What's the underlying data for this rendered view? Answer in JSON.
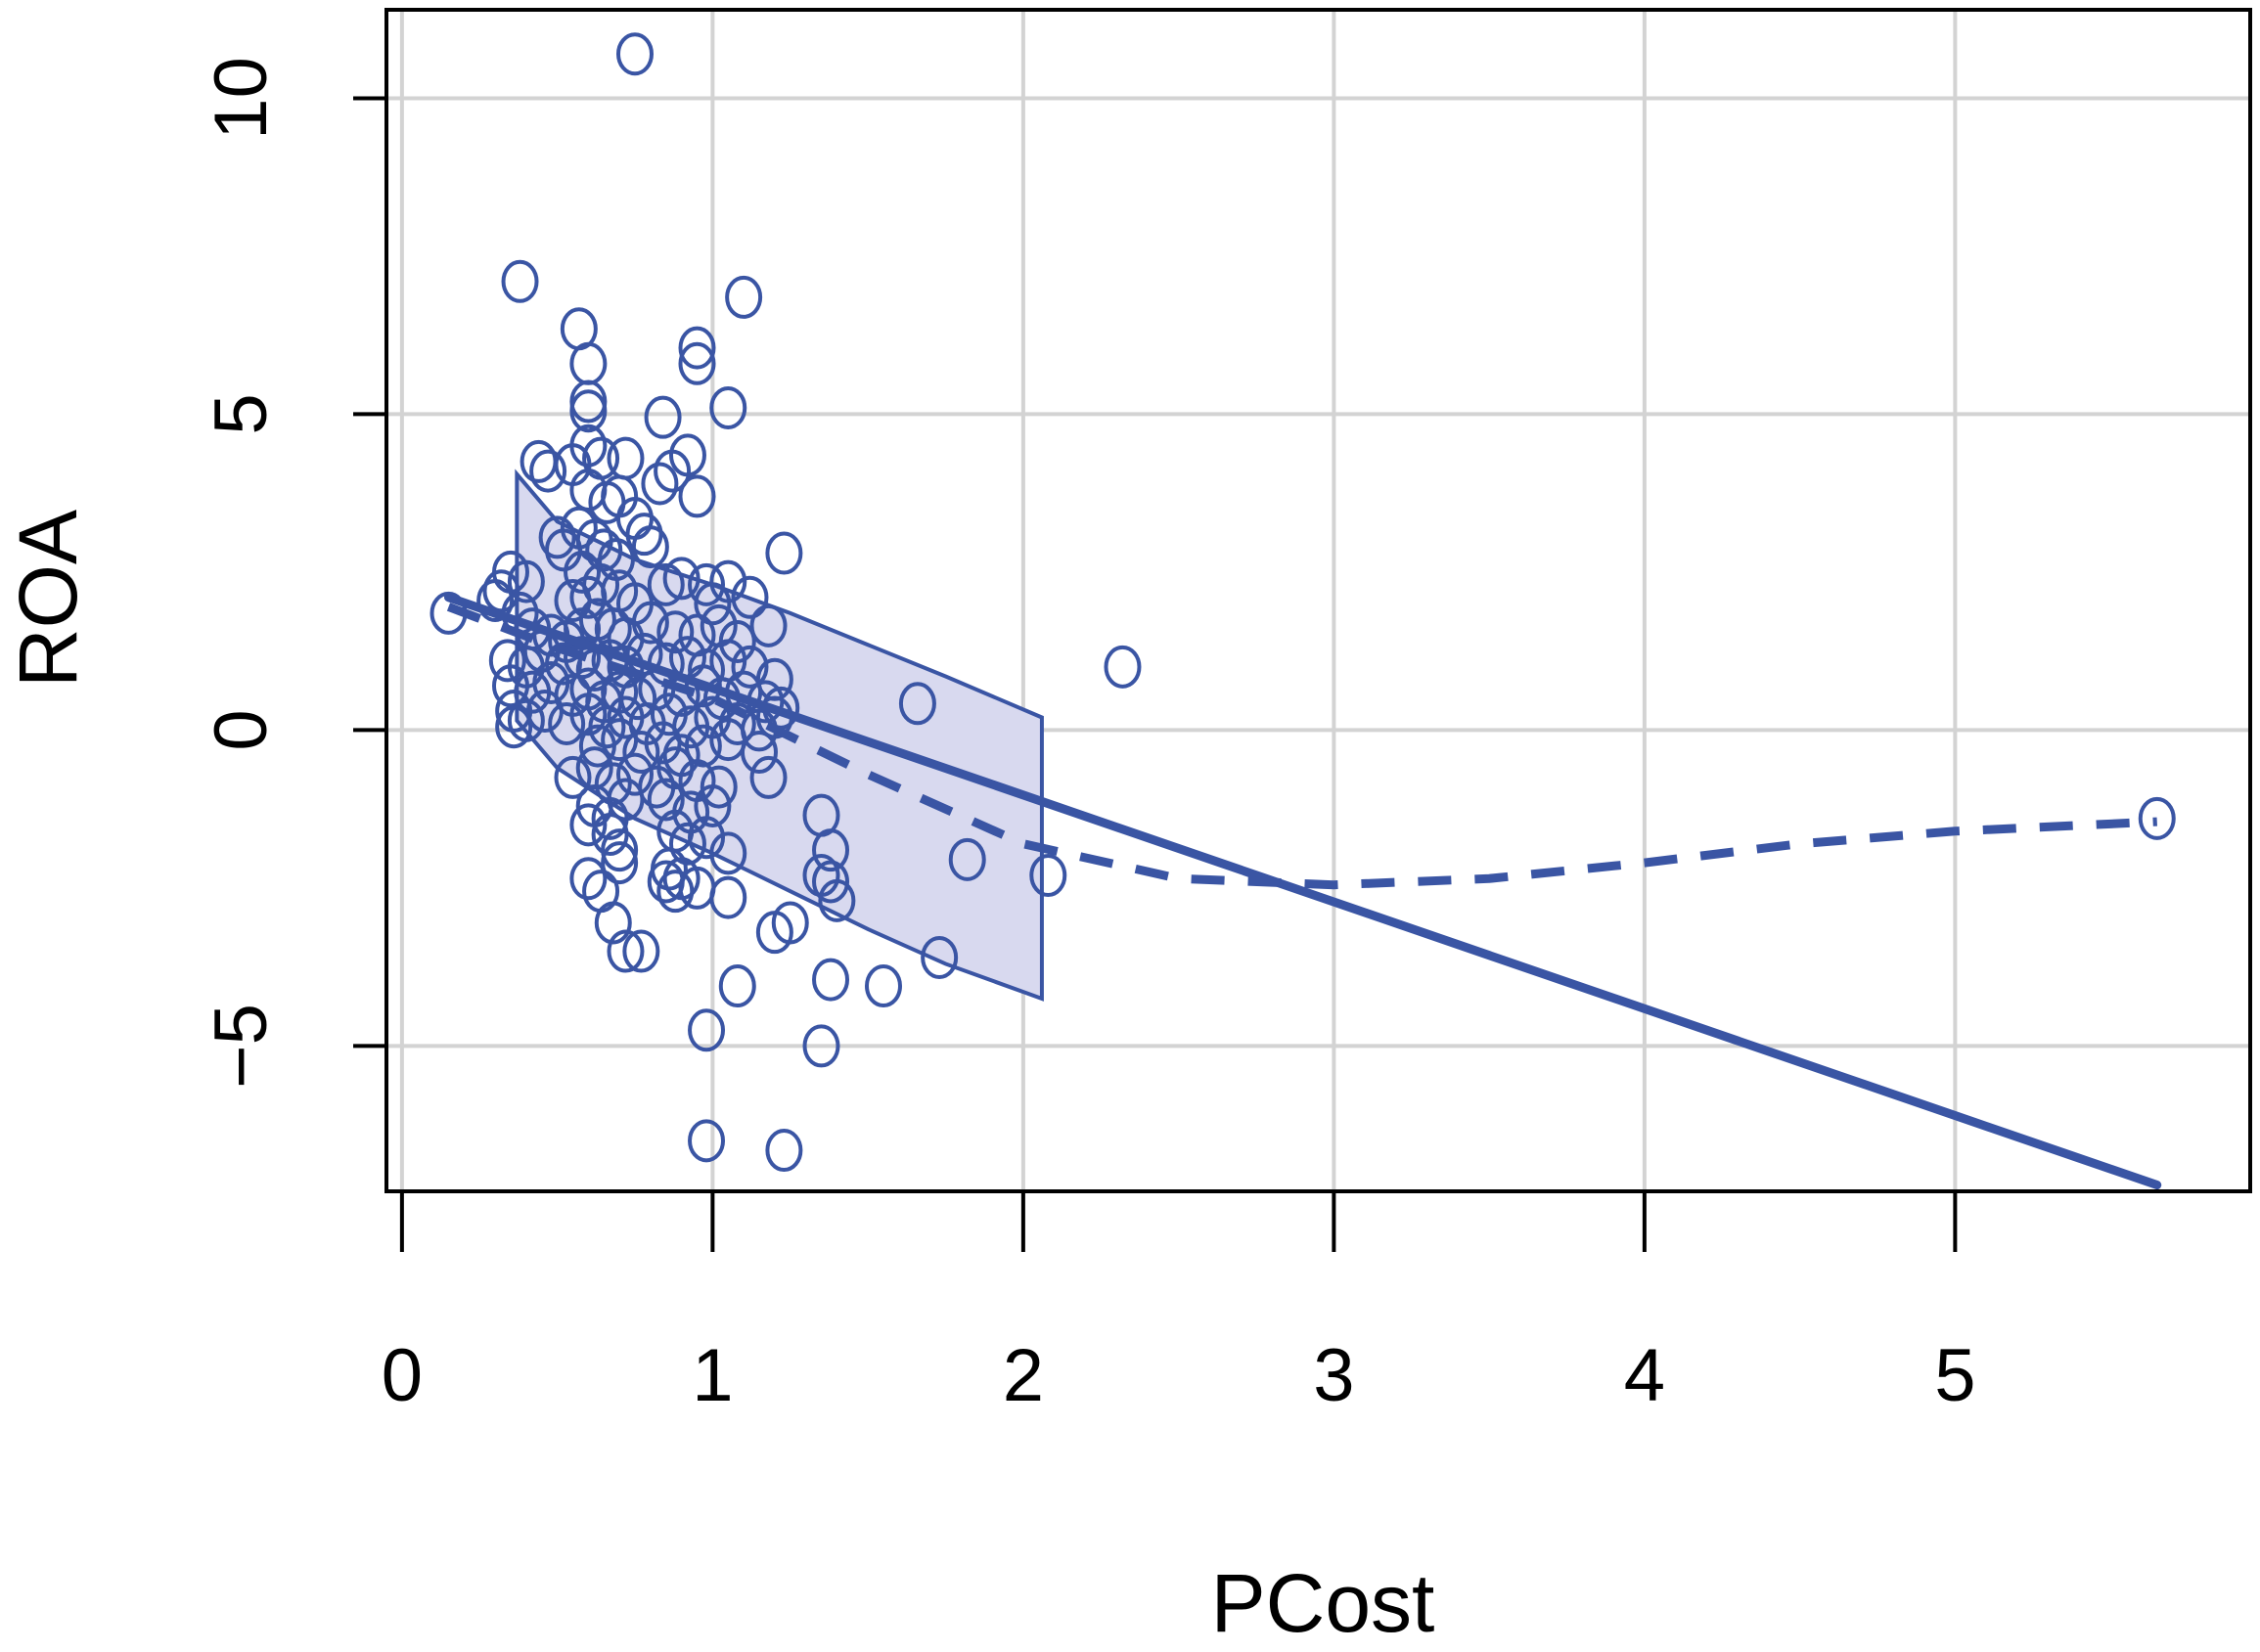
{
  "colors": {
    "series": "#3a55a4",
    "band_fill": "#d8d9ef",
    "grid": "#d3d3d3",
    "axis": "#000000"
  },
  "chart_data": {
    "type": "scatter",
    "title": "",
    "xlabel": "PCost",
    "ylabel": "ROA",
    "xlim": [
      -0.05,
      5.95
    ],
    "ylim": [
      -7.3,
      11.4
    ],
    "xticks": [
      0,
      1,
      2,
      3,
      4,
      5
    ],
    "yticks": [
      -5,
      0,
      5,
      10
    ],
    "xtick_labels": [
      "0",
      "1",
      "2",
      "3",
      "4",
      "5"
    ],
    "ytick_labels": [
      "−5",
      "0",
      "5",
      "10"
    ],
    "grid": true,
    "legend": "none",
    "points": [
      [
        0.15,
        1.85
      ],
      [
        0.75,
        10.7
      ],
      [
        0.38,
        7.1
      ],
      [
        1.1,
        6.85
      ],
      [
        0.57,
        6.35
      ],
      [
        0.95,
        6.05
      ],
      [
        0.95,
        5.8
      ],
      [
        0.6,
        5.8
      ],
      [
        0.6,
        5.2
      ],
      [
        0.6,
        5.05
      ],
      [
        1.05,
        5.1
      ],
      [
        0.84,
        4.95
      ],
      [
        0.6,
        4.5
      ],
      [
        0.64,
        4.3
      ],
      [
        0.44,
        4.25
      ],
      [
        0.47,
        4.1
      ],
      [
        0.55,
        4.2
      ],
      [
        0.72,
        4.3
      ],
      [
        0.92,
        4.35
      ],
      [
        0.87,
        4.1
      ],
      [
        0.83,
        3.9
      ],
      [
        0.95,
        3.7
      ],
      [
        0.6,
        3.8
      ],
      [
        0.66,
        3.6
      ],
      [
        0.7,
        3.7
      ],
      [
        0.75,
        3.35
      ],
      [
        0.78,
        3.1
      ],
      [
        0.8,
        2.9
      ],
      [
        0.5,
        3.05
      ],
      [
        0.52,
        2.85
      ],
      [
        0.57,
        3.2
      ],
      [
        0.62,
        3.0
      ],
      [
        0.65,
        2.85
      ],
      [
        0.69,
        2.7
      ],
      [
        0.35,
        2.5
      ],
      [
        0.32,
        2.2
      ],
      [
        0.4,
        2.35
      ],
      [
        0.58,
        2.5
      ],
      [
        0.64,
        2.3
      ],
      [
        0.6,
        2.1
      ],
      [
        0.55,
        2.05
      ],
      [
        0.7,
        2.2
      ],
      [
        0.75,
        2.0
      ],
      [
        0.85,
        2.3
      ],
      [
        0.9,
        2.4
      ],
      [
        0.98,
        2.3
      ],
      [
        1.05,
        2.35
      ],
      [
        1.12,
        2.1
      ],
      [
        1.0,
        2.0
      ],
      [
        0.3,
        2.05
      ],
      [
        0.38,
        1.85
      ],
      [
        0.42,
        1.6
      ],
      [
        0.48,
        1.5
      ],
      [
        0.53,
        1.4
      ],
      [
        0.58,
        1.6
      ],
      [
        0.63,
        1.75
      ],
      [
        0.68,
        1.6
      ],
      [
        0.72,
        1.45
      ],
      [
        0.8,
        1.7
      ],
      [
        0.88,
        1.55
      ],
      [
        0.95,
        1.5
      ],
      [
        1.02,
        1.65
      ],
      [
        1.08,
        1.4
      ],
      [
        1.18,
        1.65
      ],
      [
        0.34,
        1.1
      ],
      [
        0.4,
        1.0
      ],
      [
        0.45,
        1.25
      ],
      [
        0.52,
        1.05
      ],
      [
        0.58,
        1.15
      ],
      [
        0.62,
        0.95
      ],
      [
        0.67,
        1.1
      ],
      [
        0.72,
        1.0
      ],
      [
        0.78,
        1.2
      ],
      [
        0.85,
        1.05
      ],
      [
        0.92,
        1.15
      ],
      [
        0.98,
        0.95
      ],
      [
        1.05,
        1.1
      ],
      [
        1.12,
        1.0
      ],
      [
        1.2,
        0.8
      ],
      [
        0.35,
        0.7
      ],
      [
        0.42,
        0.6
      ],
      [
        0.48,
        0.75
      ],
      [
        0.55,
        0.55
      ],
      [
        0.6,
        0.65
      ],
      [
        0.65,
        0.45
      ],
      [
        0.7,
        0.6
      ],
      [
        0.76,
        0.5
      ],
      [
        0.82,
        0.65
      ],
      [
        0.9,
        0.55
      ],
      [
        0.97,
        0.7
      ],
      [
        1.03,
        0.5
      ],
      [
        1.1,
        0.6
      ],
      [
        1.17,
        0.45
      ],
      [
        1.22,
        0.35
      ],
      [
        1.66,
        0.42
      ],
      [
        2.32,
        1.0
      ],
      [
        1.23,
        2.8
      ],
      [
        0.36,
        0.3
      ],
      [
        0.4,
        0.15
      ],
      [
        0.46,
        0.3
      ],
      [
        0.53,
        0.1
      ],
      [
        0.6,
        0.25
      ],
      [
        0.66,
        0.05
      ],
      [
        0.72,
        0.2
      ],
      [
        0.79,
        0.1
      ],
      [
        0.86,
        0.25
      ],
      [
        0.93,
        0.05
      ],
      [
        1.0,
        0.2
      ],
      [
        1.08,
        0.1
      ],
      [
        1.15,
        0.0
      ],
      [
        1.2,
        0.2
      ],
      [
        0.36,
        0.05
      ],
      [
        0.63,
        -0.25
      ],
      [
        0.7,
        -0.15
      ],
      [
        0.77,
        -0.35
      ],
      [
        0.84,
        -0.2
      ],
      [
        0.9,
        -0.4
      ],
      [
        0.97,
        -0.25
      ],
      [
        1.05,
        -0.15
      ],
      [
        1.15,
        -0.35
      ],
      [
        0.55,
        -0.75
      ],
      [
        0.62,
        -0.6
      ],
      [
        0.68,
        -0.85
      ],
      [
        0.75,
        -0.7
      ],
      [
        0.82,
        -0.9
      ],
      [
        0.88,
        -0.6
      ],
      [
        0.95,
        -0.8
      ],
      [
        1.02,
        -0.9
      ],
      [
        1.18,
        -0.75
      ],
      [
        0.62,
        -1.2
      ],
      [
        0.67,
        -1.4
      ],
      [
        0.72,
        -1.1
      ],
      [
        0.85,
        -1.1
      ],
      [
        0.93,
        -1.3
      ],
      [
        1.0,
        -1.2
      ],
      [
        0.6,
        -1.5
      ],
      [
        0.67,
        -1.65
      ],
      [
        0.7,
        -1.9
      ],
      [
        0.88,
        -1.6
      ],
      [
        0.92,
        -1.8
      ],
      [
        0.98,
        -1.7
      ],
      [
        1.05,
        -1.95
      ],
      [
        1.35,
        -1.35
      ],
      [
        1.38,
        -1.9
      ],
      [
        0.7,
        -2.1
      ],
      [
        0.86,
        -2.2
      ],
      [
        0.9,
        -2.35
      ],
      [
        0.95,
        -2.5
      ],
      [
        1.35,
        -2.3
      ],
      [
        1.38,
        -2.4
      ],
      [
        1.82,
        -2.05
      ],
      [
        2.08,
        -2.3
      ],
      [
        0.6,
        -2.35
      ],
      [
        0.64,
        -2.55
      ],
      [
        0.85,
        -2.4
      ],
      [
        0.88,
        -2.55
      ],
      [
        1.05,
        -2.65
      ],
      [
        1.4,
        -2.7
      ],
      [
        0.68,
        -3.05
      ],
      [
        1.2,
        -3.2
      ],
      [
        1.25,
        -3.05
      ],
      [
        0.72,
        -3.5
      ],
      [
        0.77,
        -3.5
      ],
      [
        1.73,
        -3.6
      ],
      [
        1.38,
        -3.95
      ],
      [
        1.55,
        -4.05
      ],
      [
        1.08,
        -4.05
      ],
      [
        0.98,
        -4.75
      ],
      [
        1.35,
        -5.0
      ],
      [
        0.98,
        -6.5
      ],
      [
        1.23,
        -6.65
      ],
      [
        5.65,
        -1.4
      ]
    ],
    "lines": [
      {
        "style": "solid",
        "points": [
          [
            0.15,
            2.1
          ],
          [
            5.65,
            -7.2
          ]
        ]
      },
      {
        "style": "dashed",
        "points": [
          [
            0.15,
            1.95
          ],
          [
            0.5,
            1.3
          ],
          [
            1.0,
            0.5
          ],
          [
            1.5,
            -0.7
          ],
          [
            2.0,
            -1.8
          ],
          [
            2.5,
            -2.35
          ],
          [
            3.0,
            -2.45
          ],
          [
            3.5,
            -2.35
          ],
          [
            4.0,
            -2.1
          ],
          [
            4.5,
            -1.8
          ],
          [
            5.0,
            -1.6
          ],
          [
            5.65,
            -1.45
          ]
        ]
      }
    ],
    "band": {
      "x": [
        0.37,
        0.5,
        0.75,
        1.0,
        1.25,
        1.5,
        1.75,
        2.06
      ],
      "upper": [
        4.05,
        3.3,
        2.7,
        2.3,
        1.85,
        1.35,
        0.85,
        0.2
      ],
      "lower": [
        0.15,
        -0.6,
        -1.4,
        -1.95,
        -2.55,
        -3.15,
        -3.7,
        -4.25
      ]
    }
  }
}
